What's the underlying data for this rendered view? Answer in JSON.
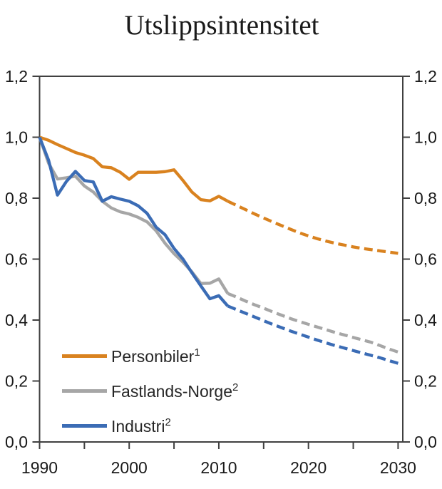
{
  "title": "Utslippsintensitet",
  "colors": {
    "axis": "#404040",
    "label_text": "#1a1a1a",
    "legend_text": "#262626",
    "background": "#ffffff",
    "personbiler_orange": "#d9821f",
    "fastlands_norge_gray": "#a6a6a6",
    "industri_blue": "#3b6cb5"
  },
  "chart_data": {
    "type": "line",
    "title": "Utslippsintensitet",
    "xlabel": "",
    "ylabel": "",
    "x_range": [
      1990,
      2030
    ],
    "y_range": [
      0,
      1.2
    ],
    "grid": false,
    "legend_position": "inside-bottom-left",
    "line_style_note": "solid through 2011, dashed projection 2012-2030",
    "solid_until_year": 2011,
    "y_ticks": [
      0,
      0.2,
      0.4,
      0.6,
      0.8,
      1.0,
      1.2
    ],
    "y_tick_labels": [
      "0,0",
      "0,2",
      "0,4",
      "0,6",
      "0,8",
      "1,0",
      "1,2"
    ],
    "x_minor_ticks": [
      1990,
      1995,
      2000,
      2005,
      2010,
      2015,
      2020,
      2025,
      2030
    ],
    "x_major_ticks": [
      1990,
      2000,
      2010,
      2020,
      2030
    ],
    "x_tick_labels": [
      "1990",
      "2000",
      "2010",
      "2020",
      "2030"
    ],
    "years": [
      1990,
      1991,
      1992,
      1993,
      1994,
      1995,
      1996,
      1997,
      1998,
      1999,
      2000,
      2001,
      2002,
      2003,
      2004,
      2005,
      2006,
      2007,
      2008,
      2009,
      2010,
      2011,
      2012,
      2013,
      2014,
      2015,
      2016,
      2017,
      2018,
      2019,
      2020,
      2021,
      2022,
      2023,
      2024,
      2025,
      2026,
      2027,
      2028,
      2029,
      2030
    ],
    "series": [
      {
        "name": "Personbiler",
        "sup": "1",
        "color": "#d9821f",
        "values": [
          1.0,
          0.99,
          0.976,
          0.963,
          0.95,
          0.941,
          0.93,
          0.903,
          0.9,
          0.885,
          0.862,
          0.885,
          0.885,
          0.885,
          0.887,
          0.893,
          0.858,
          0.82,
          0.795,
          0.791,
          0.806,
          0.79,
          0.776,
          0.762,
          0.748,
          0.735,
          0.722,
          0.71,
          0.698,
          0.686,
          0.676,
          0.667,
          0.659,
          0.652,
          0.646,
          0.64,
          0.635,
          0.631,
          0.627,
          0.623,
          0.619
        ]
      },
      {
        "name": "Fastlands-Norge",
        "sup": "2",
        "color": "#a6a6a6",
        "values": [
          1.0,
          0.915,
          0.863,
          0.867,
          0.872,
          0.84,
          0.82,
          0.79,
          0.768,
          0.755,
          0.748,
          0.737,
          0.722,
          0.693,
          0.652,
          0.618,
          0.59,
          0.558,
          0.52,
          0.521,
          0.535,
          0.487,
          0.475,
          0.462,
          0.45,
          0.439,
          0.427,
          0.416,
          0.405,
          0.395,
          0.386,
          0.377,
          0.368,
          0.359,
          0.351,
          0.343,
          0.335,
          0.327,
          0.316,
          0.305,
          0.295
        ]
      },
      {
        "name": "Industri",
        "sup": "2",
        "color": "#3b6cb5",
        "values": [
          1.0,
          0.925,
          0.81,
          0.855,
          0.888,
          0.858,
          0.853,
          0.79,
          0.805,
          0.797,
          0.79,
          0.775,
          0.75,
          0.705,
          0.68,
          0.635,
          0.6,
          0.555,
          0.512,
          0.47,
          0.48,
          0.446,
          0.434,
          0.422,
          0.41,
          0.398,
          0.386,
          0.375,
          0.364,
          0.354,
          0.344,
          0.334,
          0.325,
          0.316,
          0.308,
          0.3,
          0.292,
          0.284,
          0.276,
          0.267,
          0.258
        ]
      }
    ]
  }
}
